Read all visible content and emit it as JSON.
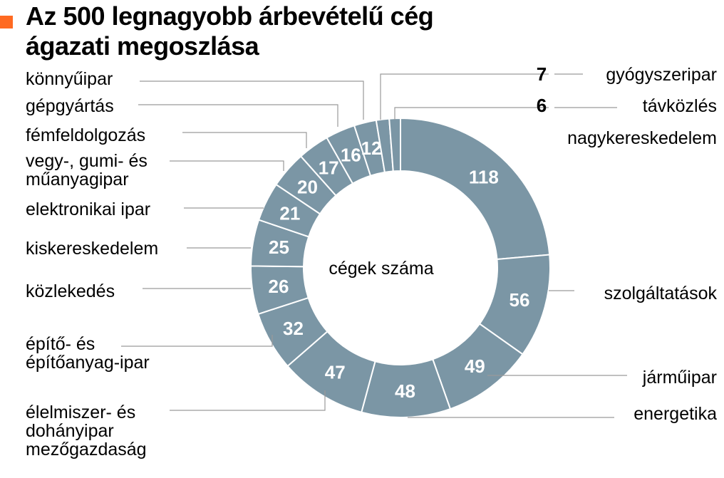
{
  "title": {
    "line1": "Az 500 legnagyobb árbevételű cég",
    "line2": "ágazati megoszlása"
  },
  "colors": {
    "accent": "#ff6a21",
    "slice": "#7b96a5",
    "leader": "#9a9a9a"
  },
  "chart_data": {
    "type": "pie",
    "variant": "donut",
    "title": "Az 500 legnagyobb árbevételű cég ágazati megoszlása",
    "center_label": "cégek száma",
    "slices": [
      {
        "label": "nagykereskedelem",
        "value": 118
      },
      {
        "label": "szolgáltatások",
        "value": 56
      },
      {
        "label": "járműipar",
        "value": 49
      },
      {
        "label": "energetika",
        "value": 48
      },
      {
        "label": "élelmiszer- és dohányipar mezőgazdaság",
        "value": 47
      },
      {
        "label": "építő- és építőanyag-ipar",
        "value": 32
      },
      {
        "label": "közlekedés",
        "value": 26
      },
      {
        "label": "kiskereskedelem",
        "value": 25
      },
      {
        "label": "elektronikai ipar",
        "value": 21
      },
      {
        "label": "vegy-, gumi- és műanyagipar",
        "value": 20
      },
      {
        "label": "fémfeldolgozás",
        "value": 17
      },
      {
        "label": "gépgyártás",
        "value": 16
      },
      {
        "label": "könnyűipar",
        "value": 12
      },
      {
        "label": "gyógyszeripar",
        "value": 7
      },
      {
        "label": "távközlés",
        "value": 6
      }
    ]
  }
}
